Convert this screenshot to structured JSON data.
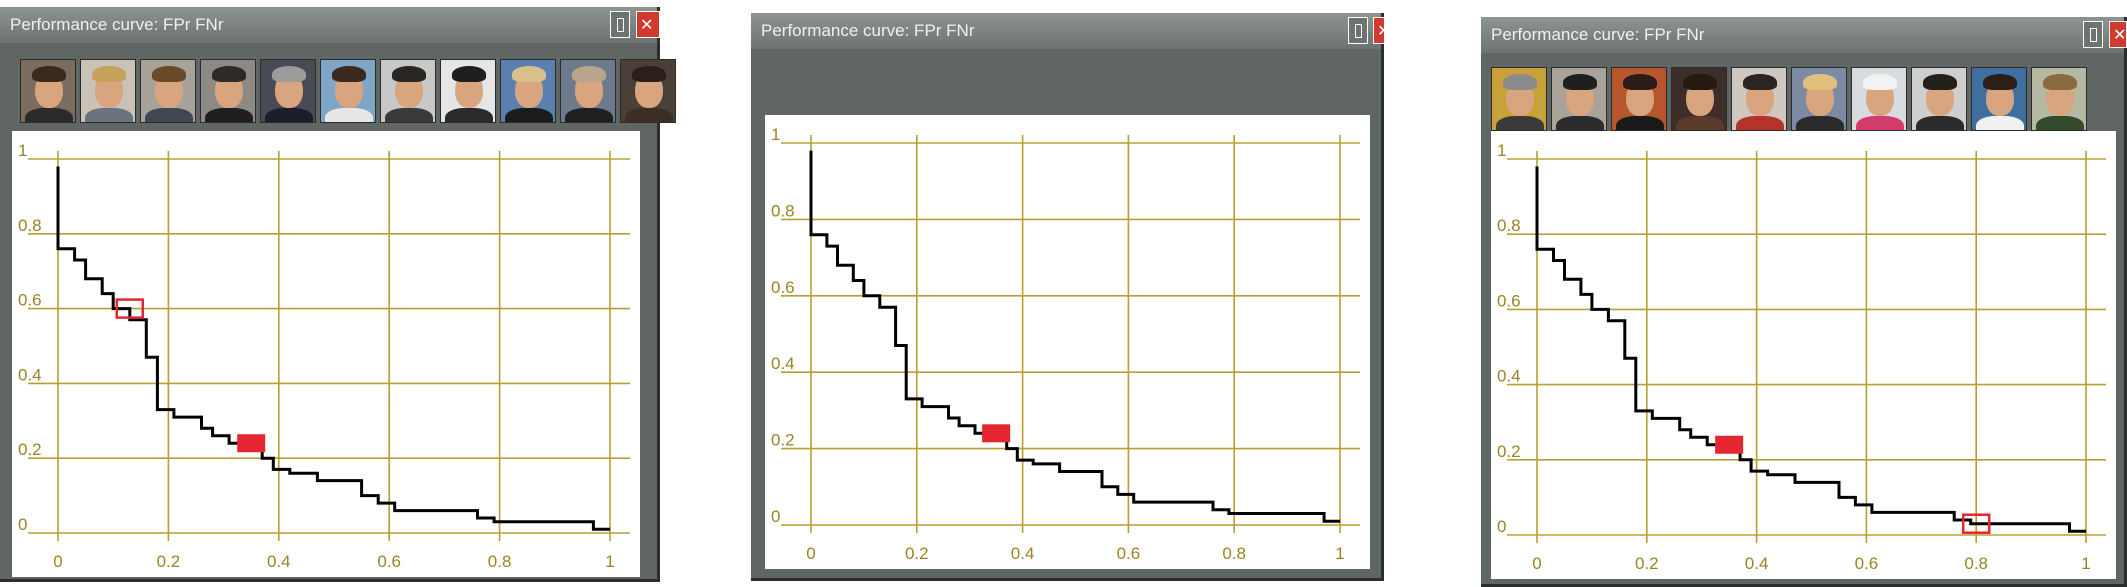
{
  "windows": [
    {
      "title": "Performance curve: FPr FNr",
      "faces": [
        {
          "name": "face-thumbnail-1",
          "bg": "#7a6c5e",
          "hair": "#3a2a1e",
          "cloth": "#2b2b2b"
        },
        {
          "name": "face-thumbnail-2",
          "bg": "#c9c2b6",
          "hair": "#c6a15b",
          "cloth": "#6b7280"
        },
        {
          "name": "face-thumbnail-3",
          "bg": "#a7a29a",
          "hair": "#6b4a2a",
          "cloth": "#3f4752"
        },
        {
          "name": "face-thumbnail-4",
          "bg": "#8d8a86",
          "hair": "#2e2a26",
          "cloth": "#1f1f1f"
        },
        {
          "name": "face-thumbnail-5",
          "bg": "#4a4a55",
          "hair": "#9c9c9c",
          "cloth": "#1d1d2b"
        },
        {
          "name": "face-thumbnail-6",
          "bg": "#7fa6c7",
          "hair": "#3b2a20",
          "cloth": "#e7e7e7"
        },
        {
          "name": "face-thumbnail-7",
          "bg": "#c8c8c8",
          "hair": "#2a2622",
          "cloth": "#3a3a3a"
        },
        {
          "name": "face-thumbnail-8",
          "bg": "#e5e5e5",
          "hair": "#1f1f1f",
          "cloth": "#2a2a2a"
        },
        {
          "name": "face-thumbnail-9",
          "bg": "#5a7fb0",
          "hair": "#d9c08a",
          "cloth": "#1c1c1c"
        },
        {
          "name": "face-thumbnail-10",
          "bg": "#6d7a8c",
          "hair": "#b9a58e",
          "cloth": "#202020"
        },
        {
          "name": "face-thumbnail-11",
          "bg": "#4a4038",
          "hair": "#2b2019",
          "cloth": "#3a2e26"
        }
      ],
      "chart": {
        "xticks": [
          "0",
          "0.2",
          "0.4",
          "0.6",
          "0.8",
          "1"
        ],
        "yticks": [
          "1",
          "0.8",
          "0.6",
          "0.4",
          "0.2",
          "0"
        ],
        "operating_point": [
          0.35,
          0.24
        ],
        "selected_point": [
          0.13,
          0.6
        ]
      }
    },
    {
      "title": "Performance curve: FPr FNr",
      "faces": [],
      "chart": {
        "xticks": [
          "0",
          "0.2",
          "0.4",
          "0.6",
          "0.8",
          "1"
        ],
        "yticks": [
          "1",
          "0.8",
          "0.6",
          "0.4",
          "0.2",
          "0"
        ],
        "operating_point": [
          0.35,
          0.24
        ],
        "selected_point": null
      }
    },
    {
      "title": "Performance curve: FPr FNr",
      "faces": [
        {
          "name": "face-thumbnail-1",
          "bg": "#c9a13a",
          "hair": "#8a8a8a",
          "cloth": "#3a3a3a"
        },
        {
          "name": "face-thumbnail-2",
          "bg": "#a9a39a",
          "hair": "#1f1f1f",
          "cloth": "#2c2c2c"
        },
        {
          "name": "face-thumbnail-3",
          "bg": "#b8562e",
          "hair": "#2a1d18",
          "cloth": "#1a1a1a"
        },
        {
          "name": "face-thumbnail-4",
          "bg": "#3d2e2a",
          "hair": "#241913",
          "cloth": "#5a3a2a"
        },
        {
          "name": "face-thumbnail-5",
          "bg": "#cfc8c0",
          "hair": "#2c2420",
          "cloth": "#b5332a"
        },
        {
          "name": "face-thumbnail-6",
          "bg": "#7d8aa3",
          "hair": "#e0c07a",
          "cloth": "#2a2a2a"
        },
        {
          "name": "face-thumbnail-7",
          "bg": "#d9dcdf",
          "hair": "#f2f2f2",
          "cloth": "#d23c6a"
        },
        {
          "name": "face-thumbnail-8",
          "bg": "#cfcfcf",
          "hair": "#24201c",
          "cloth": "#2b2b2b"
        },
        {
          "name": "face-thumbnail-9",
          "bg": "#3f6f9f",
          "hair": "#2a2018",
          "cloth": "#f0f0f0"
        },
        {
          "name": "face-thumbnail-10",
          "bg": "#b5b9a4",
          "hair": "#8a6a40",
          "cloth": "#344a2c"
        }
      ],
      "chart": {
        "xticks": [
          "0",
          "0.2",
          "0.4",
          "0.6",
          "0.8",
          "1"
        ],
        "yticks": [
          "1",
          "0.8",
          "0.6",
          "0.4",
          "0.2",
          "0"
        ],
        "operating_point": [
          0.35,
          0.24
        ],
        "selected_point": [
          0.8,
          0.03
        ]
      }
    }
  ],
  "chart_data": {
    "type": "line",
    "xlabel": "",
    "ylabel": "",
    "xlim": [
      0,
      1
    ],
    "ylim": [
      0,
      1
    ],
    "grid": true,
    "series": [
      {
        "values_xy": [
          [
            0,
            0.98
          ],
          [
            0,
            0.76
          ],
          [
            0.03,
            0.76
          ],
          [
            0.03,
            0.73
          ],
          [
            0.05,
            0.73
          ],
          [
            0.05,
            0.68
          ],
          [
            0.08,
            0.68
          ],
          [
            0.08,
            0.64
          ],
          [
            0.1,
            0.64
          ],
          [
            0.1,
            0.6
          ],
          [
            0.13,
            0.6
          ],
          [
            0.13,
            0.57
          ],
          [
            0.16,
            0.57
          ],
          [
            0.16,
            0.47
          ],
          [
            0.18,
            0.47
          ],
          [
            0.18,
            0.33
          ],
          [
            0.21,
            0.33
          ],
          [
            0.21,
            0.31
          ],
          [
            0.26,
            0.31
          ],
          [
            0.26,
            0.28
          ],
          [
            0.28,
            0.28
          ],
          [
            0.28,
            0.26
          ],
          [
            0.31,
            0.26
          ],
          [
            0.31,
            0.24
          ],
          [
            0.37,
            0.24
          ],
          [
            0.37,
            0.2
          ],
          [
            0.39,
            0.2
          ],
          [
            0.39,
            0.17
          ],
          [
            0.42,
            0.17
          ],
          [
            0.42,
            0.16
          ],
          [
            0.47,
            0.16
          ],
          [
            0.47,
            0.14
          ],
          [
            0.55,
            0.14
          ],
          [
            0.55,
            0.1
          ],
          [
            0.58,
            0.1
          ],
          [
            0.58,
            0.08
          ],
          [
            0.61,
            0.08
          ],
          [
            0.61,
            0.06
          ],
          [
            0.76,
            0.06
          ],
          [
            0.76,
            0.04
          ],
          [
            0.79,
            0.04
          ],
          [
            0.79,
            0.03
          ],
          [
            0.97,
            0.03
          ],
          [
            0.97,
            0.01
          ],
          [
            1.0,
            0.01
          ]
        ]
      }
    ]
  },
  "colors": {
    "grid": "#b8a030",
    "tick_text": "#9a8426",
    "curve": "#000000",
    "marker": "#e3262f"
  }
}
